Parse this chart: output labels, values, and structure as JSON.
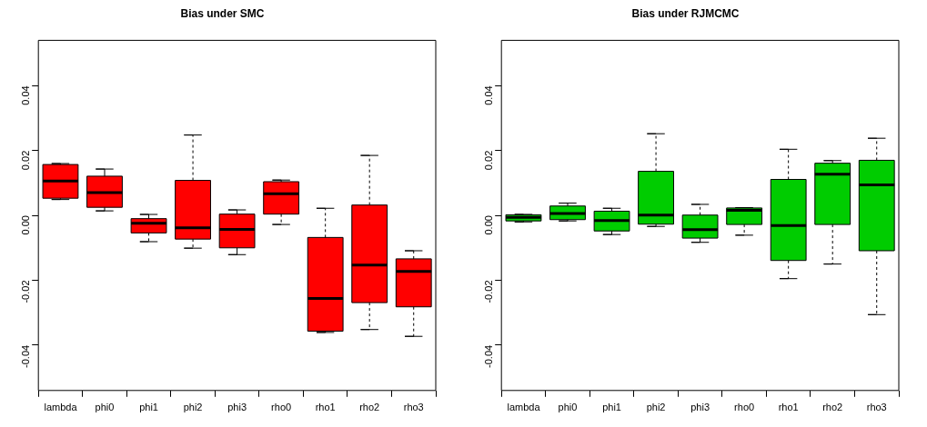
{
  "chart_data": [
    {
      "type": "box",
      "title": "Bias under SMC",
      "categories": [
        "lambda",
        "phi0",
        "phi1",
        "phi2",
        "phi3",
        "rho0",
        "rho1",
        "rho2",
        "rho3"
      ],
      "ylim": [
        -0.054,
        0.054
      ],
      "yticks": [
        {
          "value": -0.04,
          "label": "-0.04"
        },
        {
          "value": -0.02,
          "label": "-0.02"
        },
        {
          "value": 0,
          "label": "0.00"
        },
        {
          "value": 0.02,
          "label": "0.02"
        },
        {
          "value": 0.04,
          "label": "0.04"
        }
      ],
      "series": [
        {
          "color": "#ff0000",
          "boxes": [
            {
              "low": 0.0049,
              "q1": 0.0053,
              "median": 0.0106,
              "q3": 0.0157,
              "high": 0.016
            },
            {
              "low": 0.0014,
              "q1": 0.0025,
              "median": 0.007,
              "q3": 0.0121,
              "high": 0.0143
            },
            {
              "low": -0.0081,
              "q1": -0.0054,
              "median": -0.0024,
              "q3": -0.001,
              "high": 0.0003
            },
            {
              "low": -0.0101,
              "q1": -0.0073,
              "median": -0.0038,
              "q3": 0.0108,
              "high": 0.0248
            },
            {
              "low": -0.0121,
              "q1": -0.01,
              "median": -0.0043,
              "q3": 0.0004,
              "high": 0.0017
            },
            {
              "low": -0.0028,
              "q1": 0.0004,
              "median": 0.0067,
              "q3": 0.0104,
              "high": 0.0109
            },
            {
              "low": -0.0361,
              "q1": -0.0357,
              "median": -0.0256,
              "q3": -0.0068,
              "high": 0.0022
            },
            {
              "low": -0.0352,
              "q1": -0.0269,
              "median": -0.0153,
              "q3": 0.0032,
              "high": 0.0185
            },
            {
              "low": -0.0373,
              "q1": -0.0282,
              "median": -0.0173,
              "q3": -0.0134,
              "high": -0.0109
            }
          ]
        }
      ]
    },
    {
      "type": "box",
      "title": "Bias under RJMCMC",
      "categories": [
        "lambda",
        "phi0",
        "phi1",
        "phi2",
        "phi3",
        "rho0",
        "rho1",
        "rho2",
        "rho3"
      ],
      "ylim": [
        -0.054,
        0.054
      ],
      "yticks": [
        {
          "value": -0.04,
          "label": "-0.04"
        },
        {
          "value": -0.02,
          "label": "-0.02"
        },
        {
          "value": 0,
          "label": "0.00"
        },
        {
          "value": 0.02,
          "label": "0.02"
        },
        {
          "value": 0.04,
          "label": "0.04"
        }
      ],
      "series": [
        {
          "color": "#00cc00",
          "boxes": [
            {
              "low": -0.002,
              "q1": -0.0017,
              "median": -0.0006,
              "q3": 0.0002,
              "high": 0.0003
            },
            {
              "low": -0.0017,
              "q1": -0.0013,
              "median": 0.0006,
              "q3": 0.0029,
              "high": 0.0038
            },
            {
              "low": -0.0059,
              "q1": -0.0048,
              "median": -0.0016,
              "q3": 0.0013,
              "high": 0.0022
            },
            {
              "low": -0.0034,
              "q1": -0.0027,
              "median": 0.0001,
              "q3": 0.0136,
              "high": 0.0252
            },
            {
              "low": -0.0083,
              "q1": -0.007,
              "median": -0.0044,
              "q3": 0.0001,
              "high": 0.0034
            },
            {
              "low": -0.0061,
              "q1": -0.0028,
              "median": 0.0016,
              "q3": 0.0023,
              "high": 0.0024
            },
            {
              "low": -0.0195,
              "q1": -0.0139,
              "median": -0.0031,
              "q3": 0.0111,
              "high": 0.0204
            },
            {
              "low": -0.015,
              "q1": -0.0028,
              "median": 0.0127,
              "q3": 0.0161,
              "high": 0.0169
            },
            {
              "low": -0.0306,
              "q1": -0.0109,
              "median": 0.0094,
              "q3": 0.017,
              "high": 0.0238
            }
          ]
        }
      ]
    }
  ]
}
